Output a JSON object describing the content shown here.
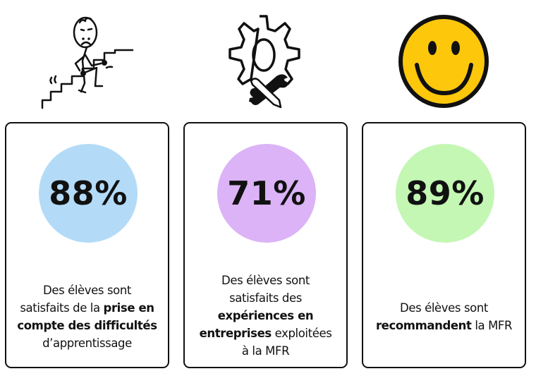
{
  "icons": {
    "first": "stick-figure-climbing-stairs-icon",
    "second": "gear-with-pencil-and-wrench-icon",
    "third": "smiley-face-icon"
  },
  "cards": [
    {
      "percent": "88%",
      "color": "#b3dbf8",
      "desc": {
        "l1": "Des élèves sont",
        "l2a": "satisfaits de la ",
        "l2b": "prise en",
        "l3": "compte des difficultés",
        "l4": "d’apprentissage"
      }
    },
    {
      "percent": "71%",
      "color": "#dcb3f6",
      "desc": {
        "l1": "Des élèves sont",
        "l2": "satisfaits des",
        "l3": "expériences en",
        "l4a": "entreprises",
        "l4b": " exploitées",
        "l5": "à la MFR"
      }
    },
    {
      "percent": "89%",
      "color": "#c3f7b3",
      "desc": {
        "l1": "Des élèves sont",
        "l2a": "recommandent",
        "l2b": " la MFR"
      }
    }
  ]
}
